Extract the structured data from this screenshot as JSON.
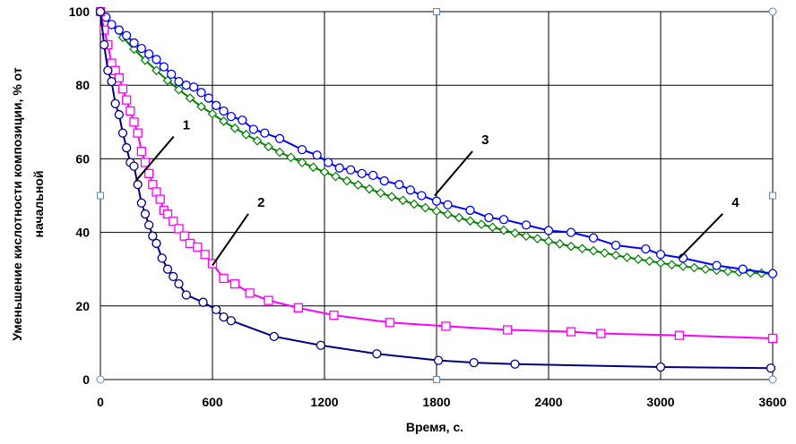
{
  "chart_data": {
    "type": "line",
    "title": "",
    "xlabel": "Время, с.",
    "ylabel_line1": "Уменьшение кислотности композиции, % от",
    "ylabel_line2": "начальной",
    "xlim": [
      0,
      3600
    ],
    "ylim": [
      0,
      100
    ],
    "x_ticks": [
      0,
      600,
      1200,
      1800,
      2400,
      3000,
      3600
    ],
    "y_ticks": [
      0,
      20,
      40,
      60,
      80,
      100
    ],
    "grid": true,
    "series": [
      {
        "name": "1",
        "color": "#000080",
        "marker": "circle",
        "x": [
          0,
          20,
          40,
          60,
          80,
          100,
          120,
          140,
          160,
          180,
          200,
          220,
          240,
          260,
          280,
          300,
          330,
          360,
          390,
          420,
          460,
          550,
          620,
          660,
          700,
          930,
          1180,
          1480,
          1810,
          2000,
          2220,
          3000,
          3590
        ],
        "y": [
          100,
          91,
          84,
          81,
          75,
          72,
          67,
          63,
          59,
          58,
          53,
          48,
          45,
          42,
          39,
          37,
          33,
          30,
          28,
          26,
          23,
          21,
          19,
          17,
          16,
          11.7,
          9.3,
          7,
          5.2,
          4.6,
          4.2,
          3.4,
          3.1
        ]
      },
      {
        "name": "2",
        "color": "#ff00ff",
        "marker": "square",
        "x": [
          0,
          20,
          40,
          60,
          80,
          100,
          120,
          140,
          160,
          180,
          200,
          220,
          240,
          260,
          280,
          300,
          320,
          340,
          360,
          390,
          420,
          450,
          480,
          520,
          560,
          600,
          660,
          720,
          800,
          900,
          1060,
          1250,
          1550,
          1850,
          2180,
          2520,
          2680,
          3100,
          3600
        ],
        "y": [
          100,
          95,
          91,
          86,
          84,
          82,
          79,
          76,
          73,
          70,
          67,
          62,
          59,
          56,
          53,
          51,
          49,
          46,
          45,
          43,
          41,
          39,
          37,
          36,
          34,
          31.5,
          27.5,
          26,
          23.5,
          21.5,
          19.5,
          17.5,
          15.5,
          14.5,
          13.5,
          13,
          12.5,
          12,
          11.2
        ]
      },
      {
        "name": "3",
        "color": "#008000",
        "marker": "diamond",
        "x": [
          0,
          60,
          120,
          180,
          240,
          300,
          360,
          420,
          480,
          540,
          600,
          660,
          720,
          780,
          840,
          900,
          960,
          1020,
          1080,
          1140,
          1200,
          1260,
          1320,
          1380,
          1440,
          1500,
          1560,
          1620,
          1680,
          1740,
          1800,
          1860,
          1920,
          1980,
          2040,
          2100,
          2160,
          2220,
          2280,
          2340,
          2400,
          2460,
          2520,
          2580,
          2640,
          2700,
          2760,
          2820,
          2880,
          2940,
          3000,
          3060,
          3120,
          3180,
          3240,
          3300,
          3360,
          3420,
          3480,
          3540,
          3600
        ],
        "y": [
          100,
          96.4,
          93.0,
          89.8,
          86.8,
          84.0,
          81.3,
          78.8,
          76.5,
          74.2,
          72.2,
          70.2,
          68.3,
          66.6,
          64.9,
          63.3,
          61.8,
          60.4,
          59.0,
          57.7,
          56.4,
          55.2,
          54.0,
          52.9,
          51.8,
          50.7,
          49.7,
          48.7,
          47.7,
          46.7,
          45.8,
          44.9,
          44.0,
          43.1,
          42.2,
          41.4,
          40.6,
          39.8,
          39.0,
          38.3,
          37.6,
          36.9,
          36.2,
          35.6,
          35.0,
          34.4,
          33.8,
          33.2,
          32.7,
          32.2,
          31.7,
          31.2,
          30.8,
          30.4,
          30.0,
          29.7,
          29.4,
          29.2,
          29.0,
          28.9,
          28.7
        ]
      },
      {
        "name": "4",
        "color": "#0000ff",
        "marker": "circle",
        "x": [
          0,
          30,
          60,
          100,
          140,
          180,
          220,
          260,
          300,
          340,
          380,
          420,
          460,
          500,
          540,
          580,
          620,
          660,
          700,
          760,
          820,
          880,
          960,
          1080,
          1160,
          1220,
          1280,
          1340,
          1400,
          1460,
          1520,
          1600,
          1660,
          1720,
          1800,
          1860,
          1980,
          2080,
          2160,
          2280,
          2400,
          2520,
          2640,
          2760,
          2920,
          3000,
          3120,
          3300,
          3440,
          3600
        ],
        "y": [
          100,
          98.5,
          96.5,
          95,
          93.5,
          91.5,
          90,
          88.5,
          87,
          85,
          83,
          81,
          80,
          79.5,
          78,
          76.5,
          74.5,
          73,
          71.5,
          70.5,
          68,
          67,
          65.5,
          62.5,
          61,
          59,
          57.5,
          57,
          56,
          55.5,
          54,
          53,
          51.5,
          50,
          48.5,
          47.5,
          46,
          44,
          43.5,
          42,
          40.5,
          40,
          38.5,
          36.5,
          35.5,
          34,
          33,
          31,
          30,
          28.8
        ]
      }
    ],
    "annotations": [
      {
        "label": "1",
        "x": 190,
        "y": 54,
        "text_x": 450,
        "text_y": 68
      },
      {
        "label": "2",
        "x": 600,
        "y": 31,
        "text_x": 850,
        "text_y": 47
      },
      {
        "label": "3",
        "x": 1790,
        "y": 50,
        "text_x": 2050,
        "text_y": 64
      },
      {
        "label": "4",
        "x": 3100,
        "y": 33,
        "text_x": 3390,
        "text_y": 47
      }
    ]
  }
}
